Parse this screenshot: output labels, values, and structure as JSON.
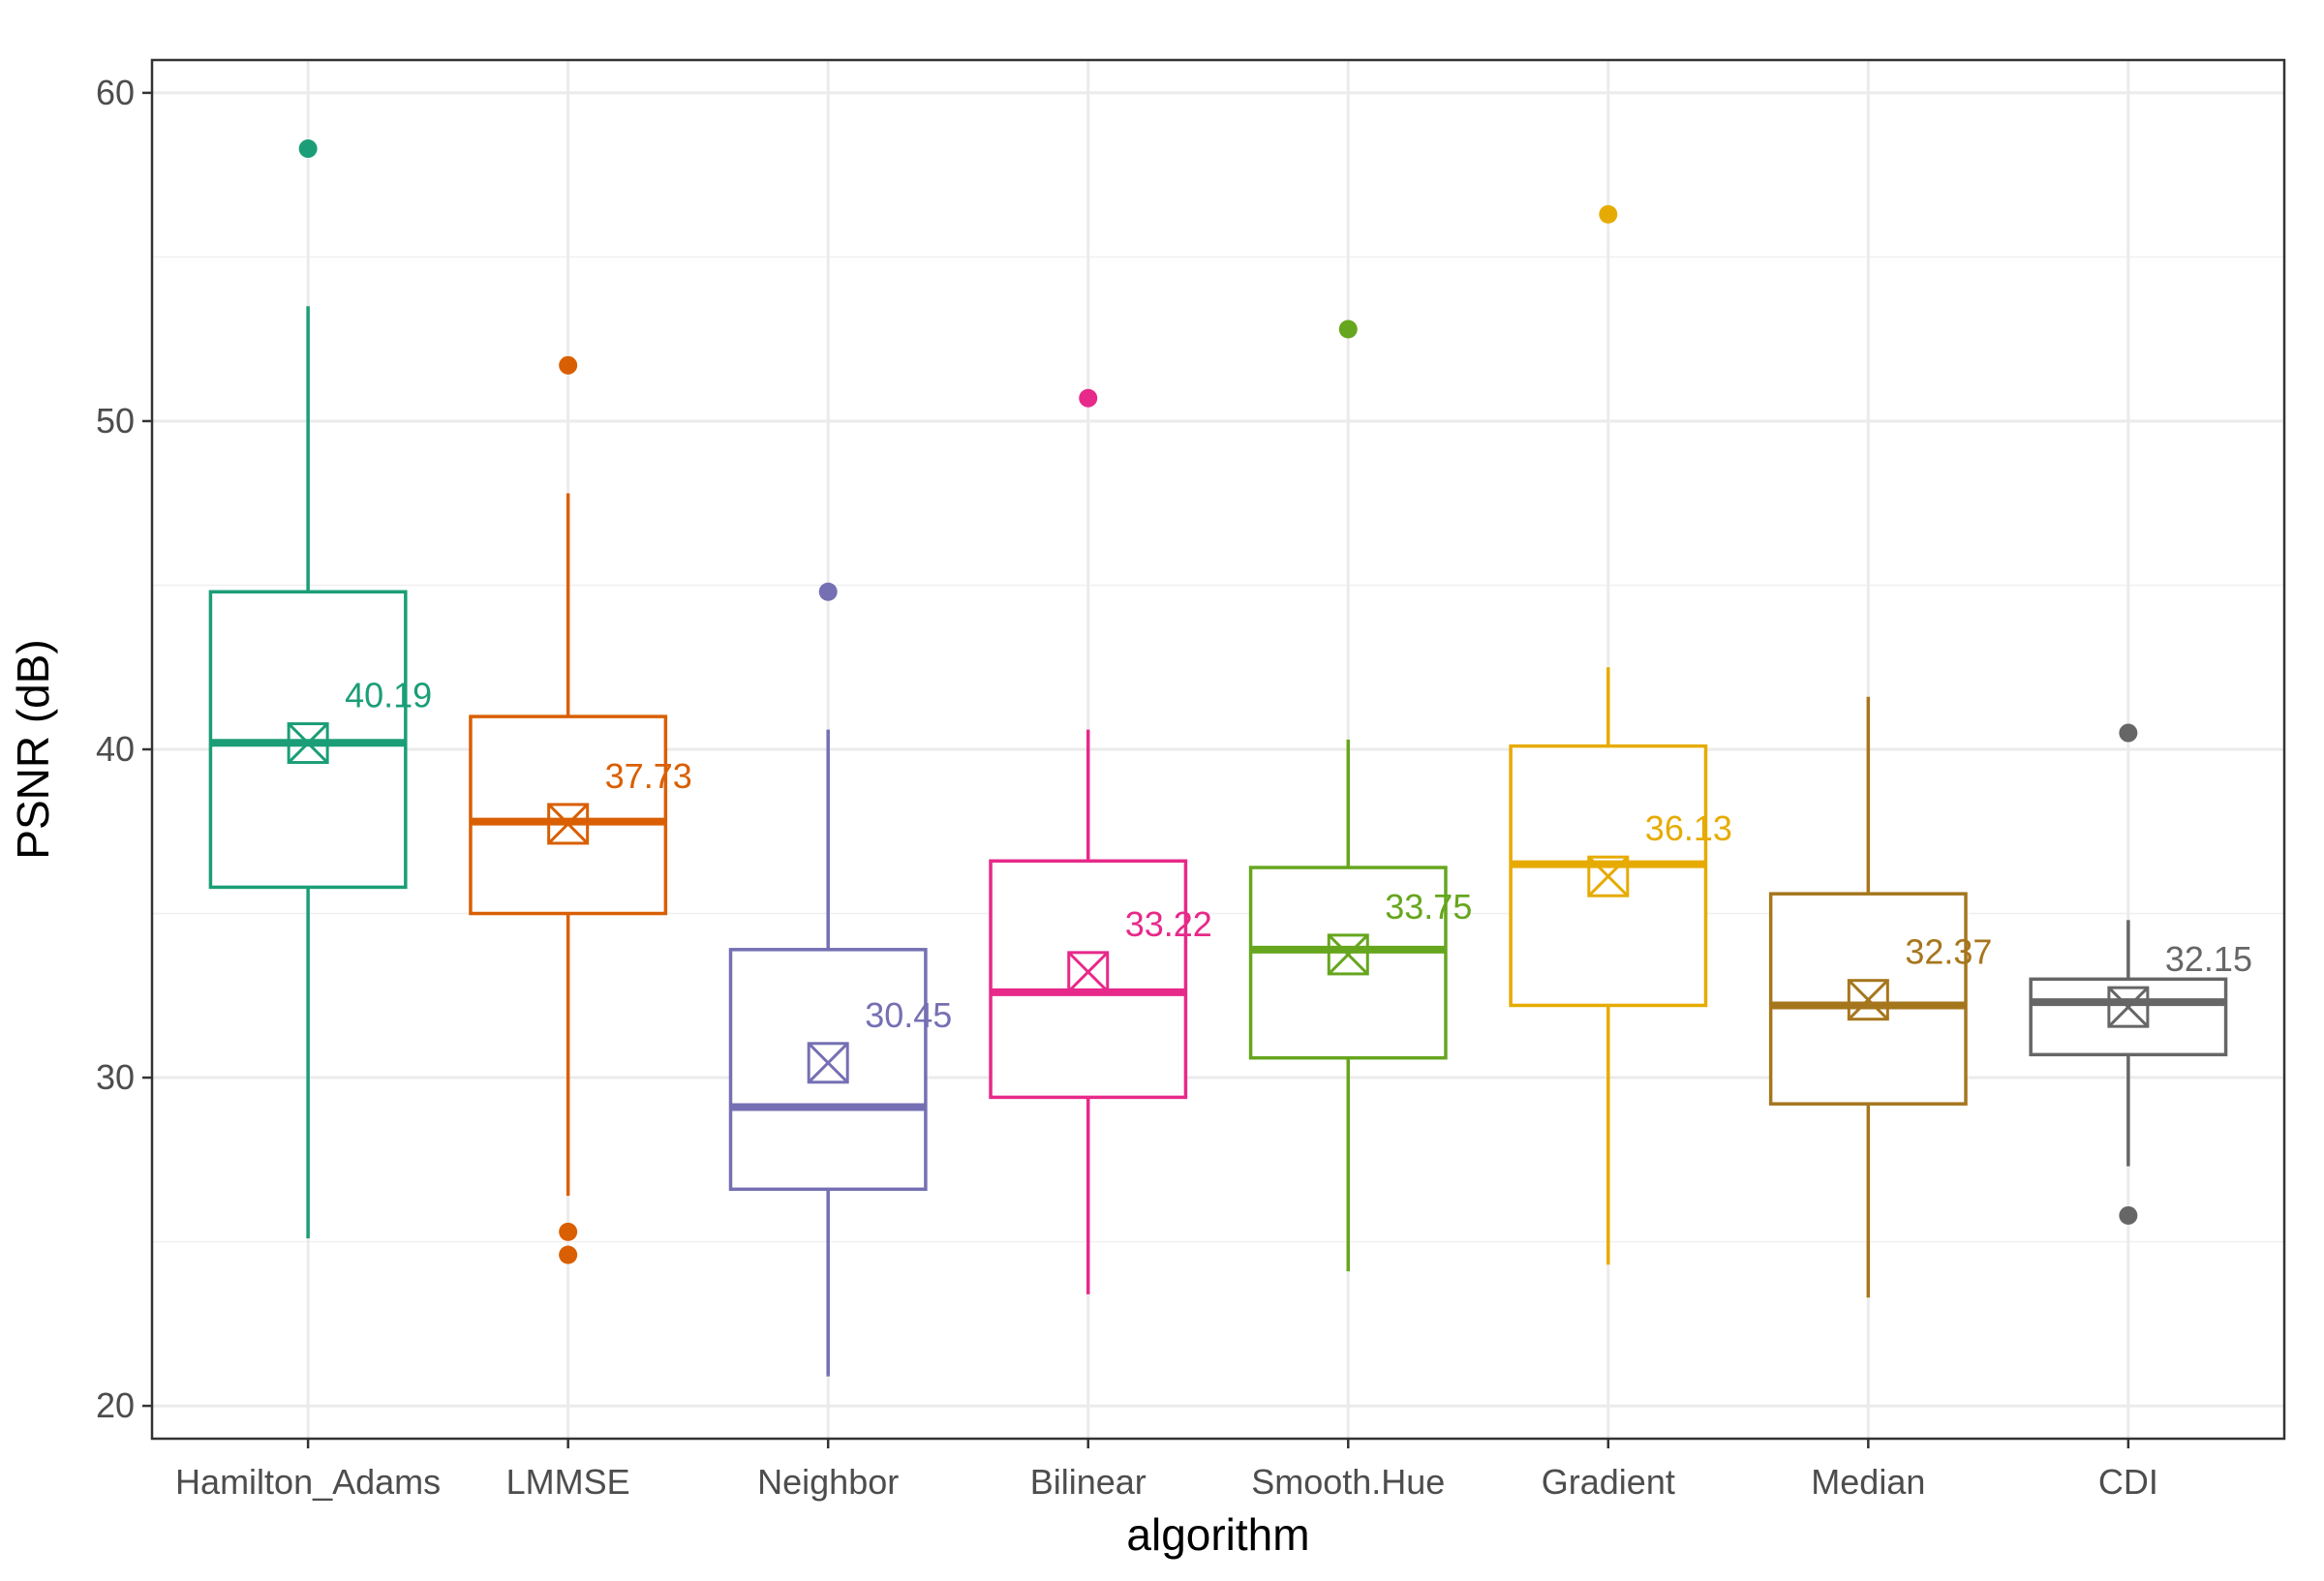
{
  "chart_data": {
    "type": "boxplot",
    "title": "",
    "xlabel": "algorithm",
    "ylabel": "PSNR (dB)",
    "ylim": [
      19,
      61
    ],
    "yticks": [
      20,
      30,
      40,
      50,
      60
    ],
    "grid": true,
    "legend": "none",
    "categories": [
      "Hamilton_Adams",
      "LMMSE",
      "Neighbor",
      "Bilinear",
      "Smooth.Hue",
      "Gradient",
      "Median",
      "CDI"
    ],
    "boxes": [
      {
        "name": "Hamilton_Adams",
        "color": "#1b9e77",
        "whisker_low": 25.1,
        "q1": 35.8,
        "median": 40.2,
        "q3": 44.8,
        "whisker_high": 53.5,
        "mean": 40.19,
        "mean_label": "40.19",
        "outliers": [
          58.3
        ]
      },
      {
        "name": "LMMSE",
        "color": "#d95f02",
        "whisker_low": 26.4,
        "q1": 35.0,
        "median": 37.8,
        "q3": 41.0,
        "whisker_high": 47.8,
        "mean": 37.73,
        "mean_label": "37.73",
        "outliers": [
          51.7,
          25.3,
          24.6
        ]
      },
      {
        "name": "Neighbor",
        "color": "#7570b3",
        "whisker_low": 20.9,
        "q1": 26.6,
        "median": 29.1,
        "q3": 33.9,
        "whisker_high": 40.6,
        "mean": 30.45,
        "mean_label": "30.45",
        "outliers": [
          44.8
        ]
      },
      {
        "name": "Bilinear",
        "color": "#e7298a",
        "whisker_low": 23.4,
        "q1": 29.4,
        "median": 32.6,
        "q3": 36.6,
        "whisker_high": 40.6,
        "mean": 33.22,
        "mean_label": "33.22",
        "outliers": [
          50.7
        ]
      },
      {
        "name": "Smooth.Hue",
        "color": "#66a61e",
        "whisker_low": 24.1,
        "q1": 30.6,
        "median": 33.9,
        "q3": 36.4,
        "whisker_high": 40.3,
        "mean": 33.75,
        "mean_label": "33.75",
        "outliers": [
          52.8
        ]
      },
      {
        "name": "Gradient",
        "color": "#e6ab02",
        "whisker_low": 24.3,
        "q1": 32.2,
        "median": 36.5,
        "q3": 40.1,
        "whisker_high": 42.5,
        "mean": 36.13,
        "mean_label": "36.13",
        "outliers": [
          56.3
        ]
      },
      {
        "name": "Median",
        "color": "#a6761d",
        "whisker_low": 23.3,
        "q1": 29.2,
        "median": 32.2,
        "q3": 35.6,
        "whisker_high": 41.6,
        "mean": 32.37,
        "mean_label": "32.37",
        "outliers": []
      },
      {
        "name": "CDI",
        "color": "#666666",
        "whisker_low": 27.3,
        "q1": 30.7,
        "median": 32.3,
        "q3": 33.0,
        "whisker_high": 34.8,
        "mean": 32.15,
        "mean_label": "32.15",
        "outliers": [
          40.5,
          25.8
        ]
      }
    ]
  }
}
